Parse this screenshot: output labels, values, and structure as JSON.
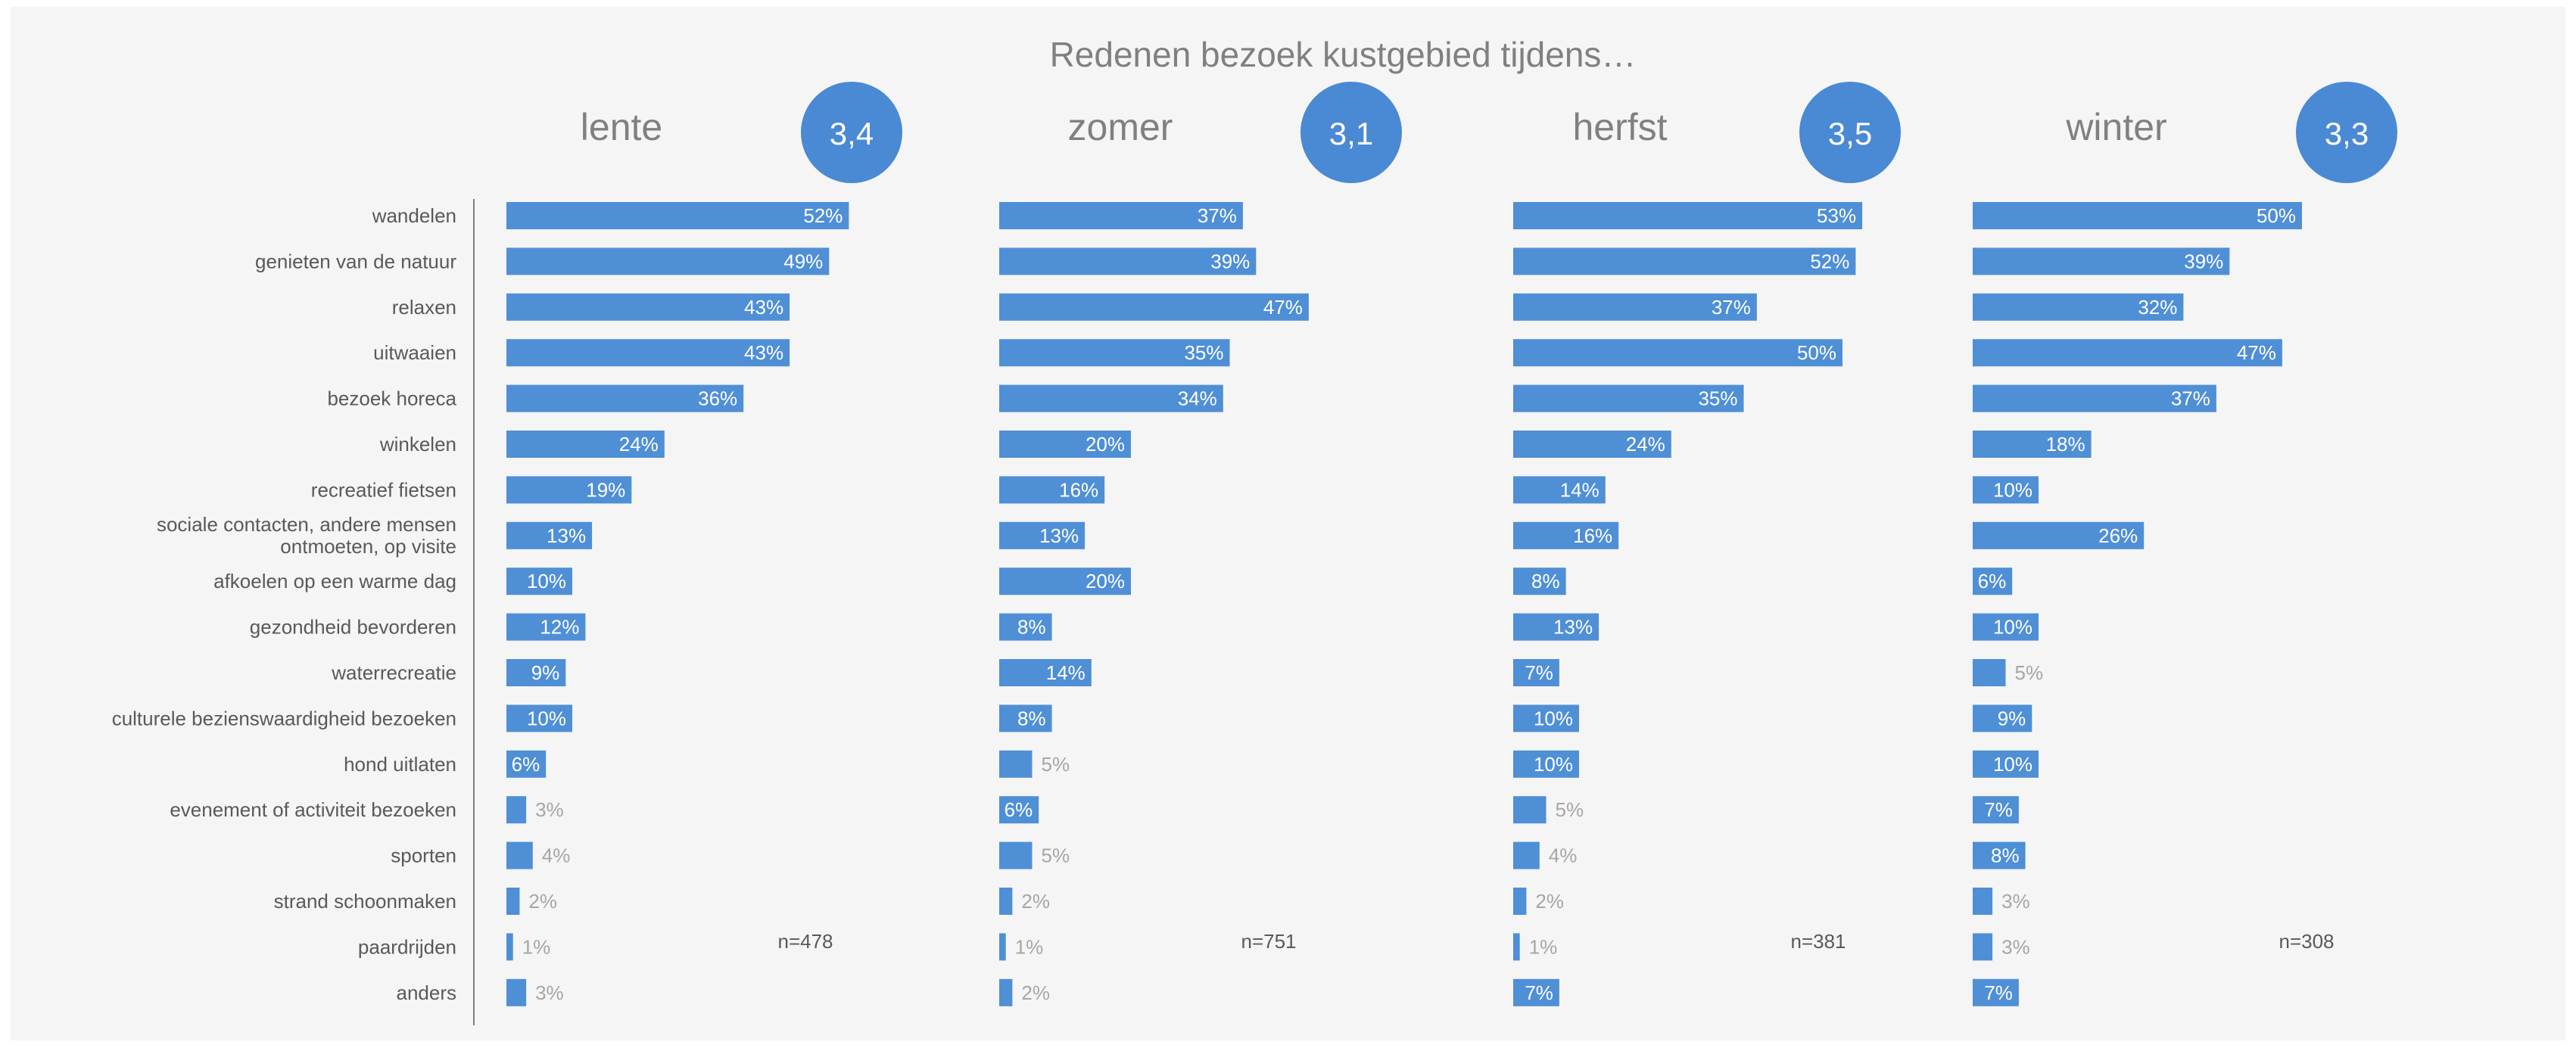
{
  "chart_data": {
    "type": "bar",
    "orientation": "horizontal",
    "title": "Redenen bezoek kustgebied tijdens…",
    "categories": [
      "wandelen",
      "genieten van de natuur",
      "relaxen",
      "uitwaaien",
      "bezoek horeca",
      "winkelen",
      "recreatief fietsen",
      "sociale contacten, andere mensen ontmoeten, op visite",
      "afkoelen op een warme dag",
      "gezondheid bevorderen",
      "waterrecreatie",
      "culturele bezienswaardigheid bezoeken",
      "hond uitlaten",
      "evenement of activiteit bezoeken",
      "sporten",
      "strand schoonmaken",
      "paardrijden",
      "anders"
    ],
    "category_lines": [
      [
        "wandelen"
      ],
      [
        "genieten van de natuur"
      ],
      [
        "relaxen"
      ],
      [
        "uitwaaien"
      ],
      [
        "bezoek horeca"
      ],
      [
        "winkelen"
      ],
      [
        "recreatief fietsen"
      ],
      [
        "sociale contacten, andere mensen",
        "ontmoeten, op visite"
      ],
      [
        "afkoelen op een warme dag"
      ],
      [
        "gezondheid bevorderen"
      ],
      [
        "waterrecreatie"
      ],
      [
        "culturele bezienswaardigheid bezoeken"
      ],
      [
        "hond uitlaten"
      ],
      [
        "evenement of activiteit bezoeken"
      ],
      [
        "sporten"
      ],
      [
        "strand schoonmaken"
      ],
      [
        "paardrijden"
      ],
      [
        "anders"
      ]
    ],
    "value_suffix": "%",
    "panels": [
      {
        "title": "lente",
        "score": "3,4",
        "n": "n=478",
        "values": [
          52,
          49,
          43,
          43,
          36,
          24,
          19,
          13,
          10,
          12,
          9,
          10,
          6,
          3,
          4,
          2,
          1,
          3
        ]
      },
      {
        "title": "zomer",
        "score": "3,1",
        "n": "n=751",
        "values": [
          37,
          39,
          47,
          35,
          34,
          20,
          16,
          13,
          20,
          8,
          14,
          8,
          5,
          6,
          5,
          2,
          1,
          2
        ]
      },
      {
        "title": "herfst",
        "score": "3,5",
        "n": "n=381",
        "values": [
          53,
          52,
          37,
          50,
          35,
          24,
          14,
          16,
          8,
          13,
          7,
          10,
          10,
          5,
          4,
          2,
          1,
          7
        ]
      },
      {
        "title": "winter",
        "score": "3,3",
        "n": "n=308",
        "values": [
          50,
          39,
          32,
          47,
          37,
          18,
          10,
          26,
          6,
          10,
          5,
          9,
          10,
          7,
          8,
          3,
          3,
          7
        ]
      }
    ],
    "colors": {
      "bar": "#4f8fd6",
      "circle": "#4a89d3",
      "title_text": "#808080",
      "label_text": "#595959",
      "outside_label": "#a6a6a6",
      "inside_label": "#ffffff",
      "axis_line": "#7f7f7f",
      "panel_background": "#f5f5f5"
    },
    "legend": "none",
    "grid": false
  }
}
